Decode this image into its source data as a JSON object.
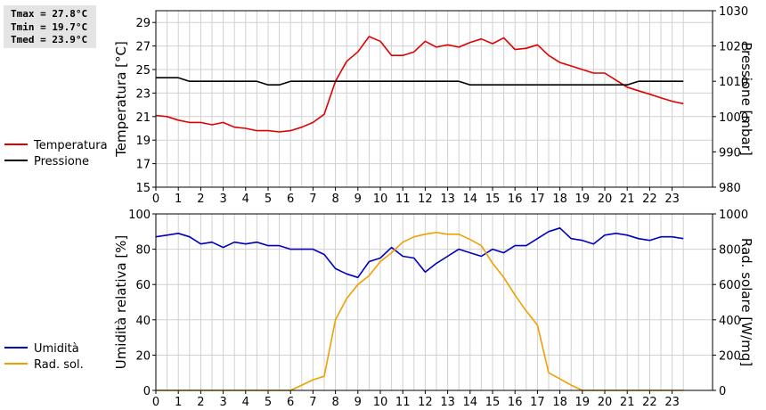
{
  "stats": {
    "tmax": "Tmax = 27.8°C",
    "tmin": "Tmin = 19.7°C",
    "tmed": "Tmed = 23.9°C"
  },
  "chart_data": [
    {
      "type": "line",
      "x_ticks": [
        "0",
        "1",
        "2",
        "3",
        "4",
        "5",
        "6",
        "7",
        "8",
        "9",
        "10",
        "11",
        "12",
        "13",
        "14",
        "15",
        "16",
        "17",
        "18",
        "19",
        "20",
        "21",
        "22",
        "23"
      ],
      "xlim": [
        0,
        24
      ],
      "ylabel": "Temperatura [°C]",
      "ylim": [
        15,
        30
      ],
      "y_ticks": [
        15,
        17,
        19,
        21,
        23,
        25,
        27,
        29
      ],
      "y2label": "Pressione [mbar]",
      "y2lim": [
        980,
        1030
      ],
      "y2_ticks": [
        980,
        990,
        1000,
        1010,
        1020,
        1030
      ],
      "grid": true,
      "legend_position": "left",
      "series": [
        {
          "name": "Temperatura",
          "axis": "left",
          "color": "#e00000",
          "x": [
            0,
            0.5,
            1,
            1.5,
            2,
            2.5,
            3,
            3.5,
            4,
            4.5,
            5,
            5.5,
            6,
            6.5,
            7,
            7.5,
            8,
            8.5,
            9,
            9.5,
            10,
            10.5,
            11,
            11.5,
            12,
            12.5,
            13,
            13.5,
            14,
            14.5,
            15,
            15.5,
            16,
            16.5,
            17,
            17.5,
            18,
            18.5,
            19,
            19.5,
            20,
            20.5,
            21,
            21.5,
            22,
            22.5,
            23,
            23.5
          ],
          "values": [
            21.1,
            21.0,
            20.7,
            20.5,
            20.5,
            20.3,
            20.5,
            20.1,
            20.0,
            19.8,
            19.8,
            19.7,
            19.8,
            20.1,
            20.5,
            21.2,
            24.0,
            25.7,
            26.5,
            27.8,
            27.4,
            26.2,
            26.2,
            26.5,
            27.4,
            26.9,
            27.1,
            26.9,
            27.3,
            27.6,
            27.2,
            27.7,
            26.7,
            26.8,
            27.1,
            26.2,
            25.6,
            25.3,
            25.0,
            24.7,
            24.7,
            24.1,
            23.5,
            23.2,
            22.9,
            22.6,
            22.3,
            22.1
          ]
        },
        {
          "name": "Pressione",
          "axis": "right",
          "color": "#000000",
          "x": [
            0,
            1,
            1.5,
            4.5,
            5,
            5.5,
            6,
            13.5,
            14,
            20.5,
            21,
            21.5,
            23.5
          ],
          "values": [
            1011,
            1011,
            1010,
            1010,
            1009,
            1009,
            1010,
            1010,
            1009,
            1009,
            1009,
            1010,
            1010
          ]
        }
      ]
    },
    {
      "type": "line",
      "x_ticks": [
        "0",
        "1",
        "2",
        "3",
        "4",
        "5",
        "6",
        "7",
        "8",
        "9",
        "10",
        "11",
        "12",
        "13",
        "14",
        "15",
        "16",
        "17",
        "18",
        "19",
        "20",
        "21",
        "22",
        "23"
      ],
      "xlim": [
        0,
        24
      ],
      "ylabel": "Umidità relativa [%]",
      "ylim": [
        0,
        100
      ],
      "y_ticks": [
        0,
        20,
        40,
        60,
        80,
        100
      ],
      "y2label": "Rad. solare [W/mq]",
      "y2lim": [
        0,
        1000
      ],
      "y2_ticks": [
        0,
        200,
        400,
        600,
        800,
        1000
      ],
      "grid": true,
      "legend_position": "left",
      "series": [
        {
          "name": "Umidità",
          "axis": "left",
          "color": "#0000c0",
          "x": [
            0,
            0.5,
            1,
            1.5,
            2,
            2.5,
            3,
            3.5,
            4,
            4.5,
            5,
            5.5,
            6,
            6.5,
            7,
            7.5,
            8,
            8.5,
            9,
            9.5,
            10,
            10.5,
            11,
            11.5,
            12,
            12.5,
            13,
            13.5,
            14,
            14.5,
            15,
            15.5,
            16,
            16.5,
            17,
            17.5,
            18,
            18.5,
            19,
            19.5,
            20,
            20.5,
            21,
            21.5,
            22,
            22.5,
            23,
            23.5
          ],
          "values": [
            87,
            88,
            89,
            87,
            83,
            84,
            81,
            84,
            83,
            84,
            82,
            82,
            80,
            80,
            80,
            77,
            69,
            66,
            64,
            73,
            75,
            81,
            76,
            75,
            67,
            72,
            76,
            80,
            78,
            76,
            80,
            78,
            82,
            82,
            86,
            90,
            92,
            86,
            85,
            83,
            88,
            89,
            88,
            86,
            85,
            87,
            87,
            86
          ]
        },
        {
          "name": "Rad. sol.",
          "axis": "right",
          "color": "#f0a000",
          "x": [
            0,
            0.5,
            1,
            1.5,
            2,
            2.5,
            3,
            3.5,
            4,
            4.5,
            5,
            5.5,
            6,
            6.5,
            7,
            7.5,
            8,
            8.5,
            9,
            9.5,
            10,
            10.5,
            11,
            11.5,
            12,
            12.5,
            13,
            13.5,
            14,
            14.5,
            15,
            15.5,
            16,
            16.5,
            17,
            17.5,
            18,
            18.5,
            19,
            19.5,
            20,
            20.5,
            21,
            21.5,
            22,
            22.5,
            23,
            23.5
          ],
          "values": [
            0,
            0,
            0,
            0,
            0,
            0,
            0,
            0,
            0,
            0,
            0,
            0,
            0,
            30,
            60,
            80,
            400,
            520,
            600,
            650,
            730,
            780,
            840,
            870,
            885,
            895,
            885,
            885,
            855,
            820,
            720,
            640,
            540,
            450,
            370,
            100,
            65,
            30,
            0,
            0,
            0,
            0,
            0,
            0,
            0,
            0,
            0,
            0
          ]
        }
      ]
    }
  ]
}
